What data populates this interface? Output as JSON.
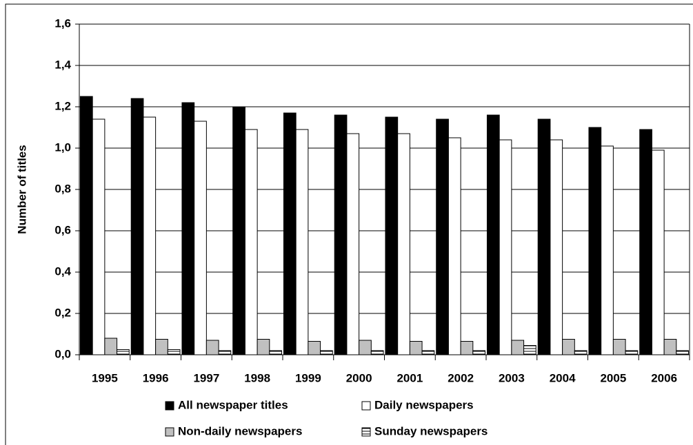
{
  "chart_data": {
    "type": "bar",
    "y_label": "Number of titles",
    "categories": [
      "1995",
      "1996",
      "1997",
      "1998",
      "1999",
      "2000",
      "2001",
      "2002",
      "2003",
      "2004",
      "2005",
      "2006"
    ],
    "series": [
      {
        "name": "All newspaper titles",
        "color": "#000000",
        "values": [
          1.25,
          1.24,
          1.22,
          1.2,
          1.17,
          1.16,
          1.15,
          1.14,
          1.16,
          1.14,
          1.1,
          1.09
        ]
      },
      {
        "name": "Daily newspapers",
        "color": "#ffffff",
        "values": [
          1.14,
          1.15,
          1.13,
          1.09,
          1.09,
          1.07,
          1.07,
          1.05,
          1.04,
          1.04,
          1.01,
          0.99
        ]
      },
      {
        "name": "Non-daily newspapers",
        "color": "#c0c0c0",
        "values": [
          0.08,
          0.075,
          0.07,
          0.075,
          0.065,
          0.07,
          0.065,
          0.065,
          0.07,
          0.075,
          0.075,
          0.075
        ]
      },
      {
        "name": "Sunday newspapers",
        "color": "#ffffff",
        "hatch": true,
        "values": [
          0.025,
          0.025,
          0.02,
          0.02,
          0.02,
          0.02,
          0.02,
          0.02,
          0.045,
          0.02,
          0.02,
          0.02
        ]
      }
    ],
    "ylim": [
      0,
      1.6
    ],
    "yticks": [
      {
        "value": 0,
        "label": "0,0"
      },
      {
        "value": 0.2,
        "label": "0,2"
      },
      {
        "value": 0.4,
        "label": "0,4"
      },
      {
        "value": 0.6,
        "label": "0,6"
      },
      {
        "value": 0.8,
        "label": "0,8"
      },
      {
        "value": 1.0,
        "label": "1,0"
      },
      {
        "value": 1.2,
        "label": "1,2"
      },
      {
        "value": 1.4,
        "label": "1,4"
      },
      {
        "value": 1.6,
        "label": "1,6"
      }
    ],
    "grid": true,
    "legend": "bottom"
  }
}
